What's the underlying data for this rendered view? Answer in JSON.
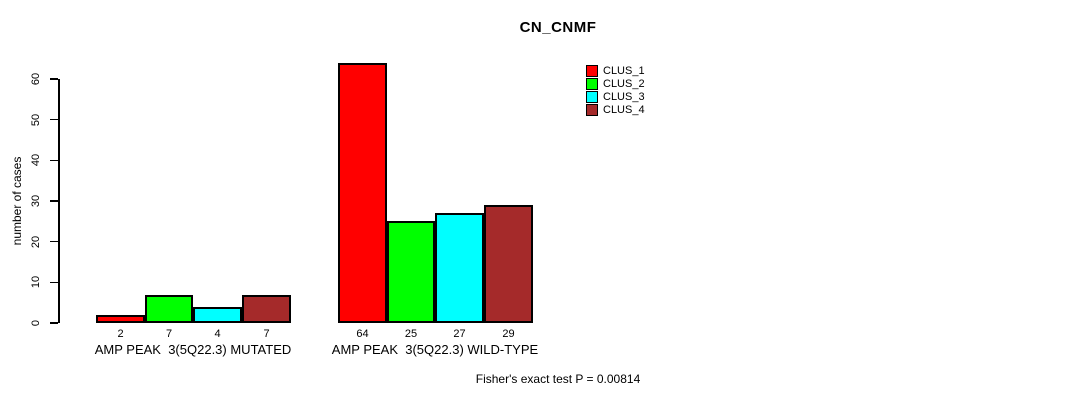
{
  "figure": {
    "background_color": "#FFFFFF",
    "text_color": "#000000"
  },
  "chart_data": {
    "type": "bar",
    "title": "CN_CNMF",
    "ylabel": "number of cases",
    "xlabel": "",
    "ylim": [
      0,
      60
    ],
    "yticks": [
      0,
      10,
      20,
      30,
      40,
      50,
      60
    ],
    "grid": false,
    "legend_position": "top-right",
    "categories": [
      "AMP PEAK  3(5Q22.3) MUTATED",
      "AMP PEAK  3(5Q22.3) WILD-TYPE"
    ],
    "series": [
      {
        "name": "CLUS_1",
        "color": "#FF0000",
        "values": [
          2,
          64
        ]
      },
      {
        "name": "CLUS_2",
        "color": "#00FF00",
        "values": [
          7,
          25
        ]
      },
      {
        "name": "CLUS_3",
        "color": "#00FFFF",
        "values": [
          4,
          27
        ]
      },
      {
        "name": "CLUS_4",
        "color": "#A52A2A",
        "values": [
          7,
          29
        ]
      }
    ],
    "bar_value_labels": [
      [
        2,
        7,
        4,
        7
      ],
      [
        64,
        25,
        27,
        29
      ]
    ],
    "footnote": "Fisher's exact test P = 0.00814"
  }
}
